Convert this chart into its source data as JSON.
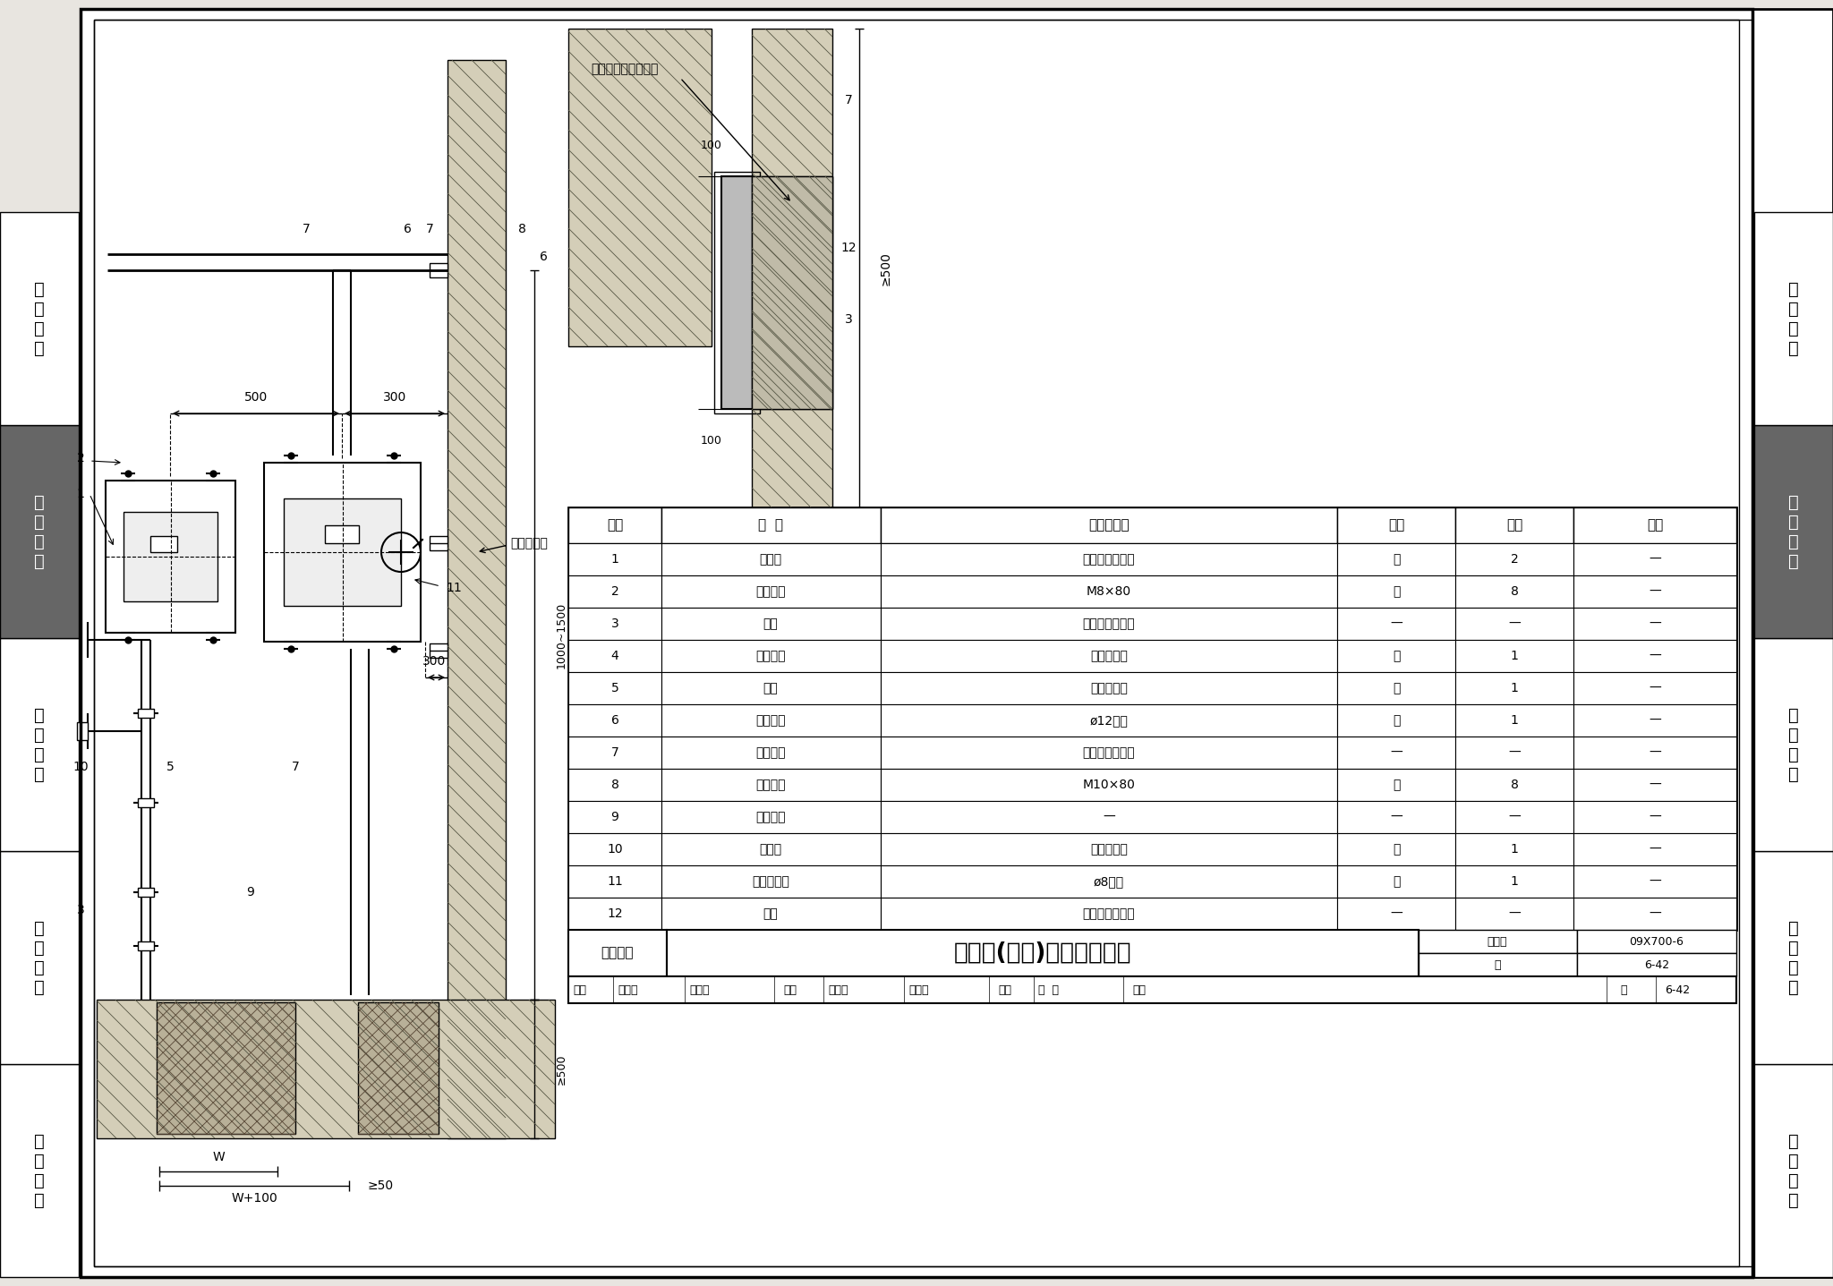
{
  "page_bg": "#e8e5e0",
  "content_bg": "#ffffff",
  "sidebar_gray": "#787878",
  "sidebar_labels": [
    "机\n房\n工\n程",
    "供\n电\n电\n源",
    "缆\n线\n敷\n设",
    "设\n备\n安\n装",
    "防\n雷\n接\n地"
  ],
  "sidebar_highlight_idx": 3,
  "sidebar_highlight_color": "#666666",
  "table_headers": [
    "编号",
    "名  称",
    "型号及规格",
    "单位",
    "数量",
    "备注"
  ],
  "table_col_ws": [
    55,
    130,
    270,
    70,
    70,
    95
  ],
  "table_data": [
    [
      "1",
      "设备箱",
      "由工程设计确定",
      "台",
      "2",
      "—"
    ],
    [
      "2",
      "胀锚螺栓",
      "M8×80",
      "套",
      "8",
      "—"
    ],
    [
      "3",
      "钢管",
      "由工程设计确定",
      "—",
      "—",
      "—"
    ],
    [
      "4",
      "锁紧螺母",
      "与钢管配合",
      "个",
      "1",
      "—"
    ],
    [
      "5",
      "管帽",
      "与钢管配合",
      "个",
      "1",
      "—"
    ],
    [
      "6",
      "接地干线",
      "ø12圆钢",
      "根",
      "1",
      "—"
    ],
    [
      "7",
      "金属线槽",
      "由工程设计确定",
      "—",
      "—",
      "—"
    ],
    [
      "8",
      "胀锚螺栓",
      "M10×80",
      "套",
      "8",
      "—"
    ],
    [
      "9",
      "防火堵料",
      "—",
      "—",
      "—",
      "—"
    ],
    [
      "10",
      "管卡子",
      "与钢管配合",
      "个",
      "1",
      "—"
    ],
    [
      "11",
      "接地连接线",
      "ø8圆钢",
      "根",
      "1",
      "—"
    ],
    [
      "12",
      "缆线",
      "由工程设计确定",
      "—",
      "—",
      "—"
    ]
  ],
  "title_main": "弱电间(竖井)内设备箱安装",
  "title_category": "设备安装",
  "title_atlas_label": "图集号",
  "title_atlas_value": "09X700-6",
  "title_page_label": "页",
  "title_page_value": "6-42",
  "hatch_color": "#c8c0a0",
  "concrete_color": "#d0c8b0",
  "crosshatch_color": "#b0a888"
}
